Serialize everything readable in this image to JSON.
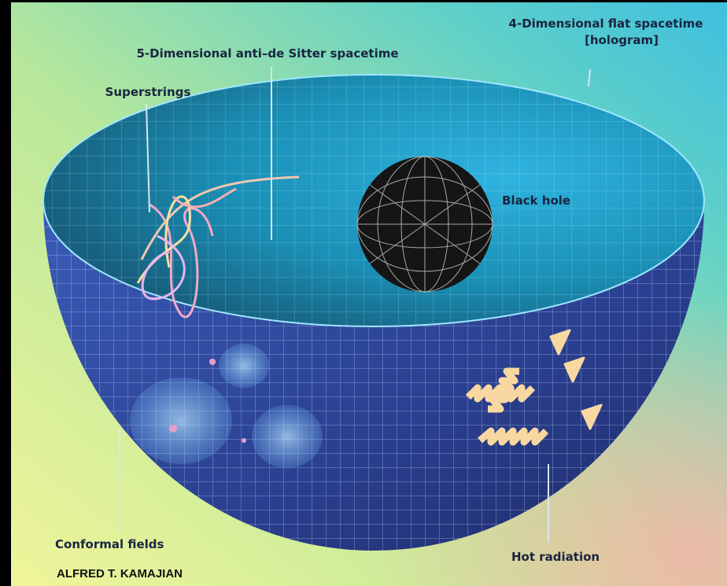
{
  "labels": {
    "ads": "5-Dimensional anti–de Sitter spacetime",
    "flat_line1": "4-Dimensional flat spacetime",
    "flat_line2": "[hologram]",
    "superstrings": "Superstrings",
    "black_hole": "Black hole",
    "conformal": "Conformal fields",
    "radiation": "Hot radiation"
  },
  "credit": "ALFRED T. KAMAJIAN"
}
